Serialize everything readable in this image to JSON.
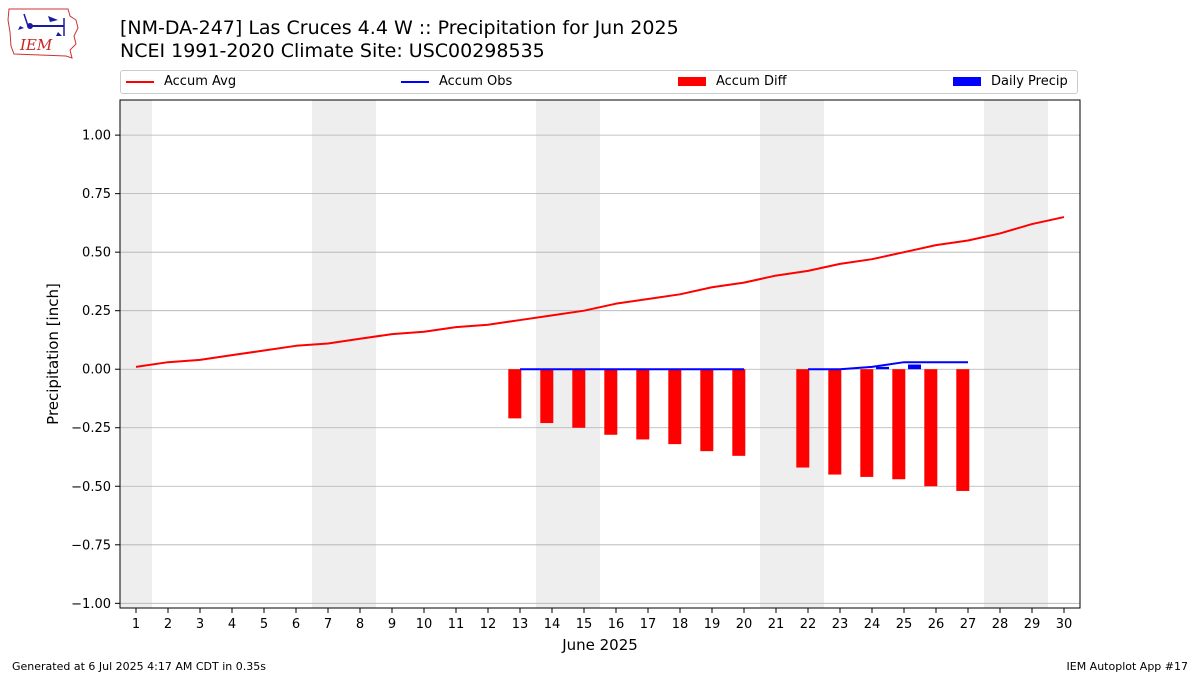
{
  "header": {
    "title_line1": "[NM-DA-247] Las Cruces 4.4 W :: Precipitation for Jun 2025",
    "title_line2": "NCEI 1991-2020 Climate Site: USC00298535"
  },
  "logo": {
    "text": "IEM",
    "icon": "iem-iowa-logo"
  },
  "footer": {
    "left": "Generated at 6 Jul 2025 4:17 AM CDT in 0.35s",
    "right": "IEM Autoplot App #17"
  },
  "legend": {
    "placement": "top",
    "items": [
      {
        "label": "Accum Avg",
        "kind": "line",
        "color": "#ff0000"
      },
      {
        "label": "Accum Obs",
        "kind": "line",
        "color": "#0000ff"
      },
      {
        "label": "Accum Diff",
        "kind": "bar",
        "color": "#ff0000"
      },
      {
        "label": "Daily Precip",
        "kind": "bar",
        "color": "#0000ff"
      }
    ]
  },
  "chart_data": {
    "type": "bar",
    "xlabel": "June 2025",
    "ylabel": "Precipitation [inch]",
    "ylim": [
      -1.02,
      1.15
    ],
    "xlim": [
      0.5,
      30.5
    ],
    "yticks": [
      -1.0,
      -0.75,
      -0.5,
      -0.25,
      0.0,
      0.25,
      0.5,
      0.75,
      1.0
    ],
    "ytick_labels": [
      "−1.00",
      "−0.75",
      "−0.50",
      "−0.25",
      "0.00",
      "0.25",
      "0.50",
      "0.75",
      "1.00"
    ],
    "xticks": [
      1,
      2,
      3,
      4,
      5,
      6,
      7,
      8,
      9,
      10,
      11,
      12,
      13,
      14,
      15,
      16,
      17,
      18,
      19,
      20,
      21,
      22,
      23,
      24,
      25,
      26,
      27,
      28,
      29,
      30
    ],
    "grid": "horizontal",
    "weekend_shading": [
      [
        0.5,
        1.5
      ],
      [
        6.5,
        8.5
      ],
      [
        13.5,
        15.5
      ],
      [
        20.5,
        22.5
      ],
      [
        27.5,
        29.5
      ]
    ],
    "colors": {
      "avg": "#ff0000",
      "obs": "#0000ff",
      "diff": "#ff0000",
      "daily": "#0000ff",
      "shade": "#eeeeee",
      "grid": "#b0b0b0"
    },
    "accum_avg": {
      "x": [
        1,
        2,
        3,
        4,
        5,
        6,
        7,
        8,
        9,
        10,
        11,
        12,
        13,
        14,
        15,
        16,
        17,
        18,
        19,
        20,
        21,
        22,
        23,
        24,
        25,
        26,
        27,
        28,
        29,
        30
      ],
      "values": [
        0.01,
        0.03,
        0.04,
        0.06,
        0.08,
        0.1,
        0.11,
        0.13,
        0.15,
        0.16,
        0.18,
        0.19,
        0.21,
        0.23,
        0.25,
        0.28,
        0.3,
        0.32,
        0.35,
        0.37,
        0.4,
        0.42,
        0.45,
        0.47,
        0.5,
        0.53,
        0.55,
        0.58,
        0.62,
        0.65
      ]
    },
    "accum_obs_segments": [
      {
        "x": [
          13,
          14,
          15,
          16,
          17,
          18,
          19,
          20
        ],
        "values": [
          0,
          0,
          0,
          0,
          0,
          0,
          0,
          0
        ]
      },
      {
        "x": [
          22,
          23,
          24,
          25,
          26,
          27
        ],
        "values": [
          0,
          0,
          0.01,
          0.03,
          0.03,
          0.03
        ]
      }
    ],
    "accum_diff": {
      "x": [
        13,
        14,
        15,
        16,
        17,
        18,
        19,
        20,
        22,
        23,
        24,
        25,
        26,
        27
      ],
      "values": [
        -0.21,
        -0.23,
        -0.25,
        -0.28,
        -0.3,
        -0.32,
        -0.35,
        -0.37,
        -0.42,
        -0.45,
        -0.46,
        -0.47,
        -0.5,
        -0.52
      ]
    },
    "daily_precip": {
      "x": [
        24,
        25
      ],
      "values": [
        0.01,
        0.02
      ]
    }
  }
}
